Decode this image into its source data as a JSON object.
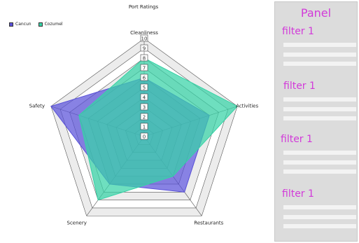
{
  "chart_data": {
    "type": "radar",
    "title": "Port Ratings",
    "axes": [
      "Cleanliness",
      "Activities",
      "Restaurants",
      "Scenery",
      "Safety"
    ],
    "rmin": 0,
    "rmax": 10,
    "ticks": [
      "0",
      "1",
      "2",
      "3",
      "4",
      "5",
      "6",
      "7",
      "8",
      "9",
      "10"
    ],
    "legend_position": "top-left",
    "series": [
      {
        "name": "Cancun",
        "color": "#5a52d9",
        "values": [
          6,
          7,
          7,
          6,
          10
        ]
      },
      {
        "name": "Cozumel",
        "color": "#36d3a6",
        "values": [
          8,
          10,
          5,
          8,
          7
        ]
      }
    ]
  },
  "panel": {
    "title": "Panel",
    "filters": [
      {
        "label": "filter 1"
      },
      {
        "label": "filter 1"
      },
      {
        "label": "filter 1"
      },
      {
        "label": "filter 1"
      }
    ]
  },
  "colors": {
    "panel_accent": "#d23ad9",
    "panel_bg": "#dcdcdc"
  }
}
